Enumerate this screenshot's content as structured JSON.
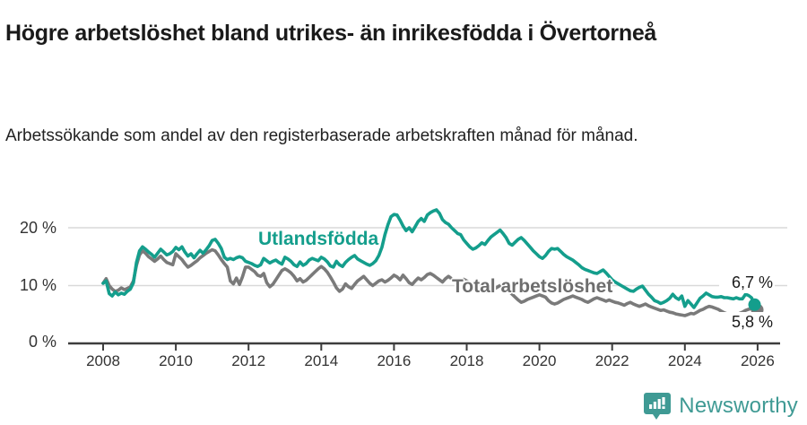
{
  "header": {
    "title": "Högre arbetslöshet bland utrikes- än inrikesfödda i Övertorneå",
    "subtitle": "Arbetssökande som andel av den registerbaserade arbetskraften månad för månad."
  },
  "footer": {
    "brand": "Newsworthy",
    "logo_icon": "bar-chart-speech-bubble-icon"
  },
  "colors": {
    "series_utlandsfodda": "#149e8c",
    "series_total": "#7a7a7a",
    "grid": "#d9d9d9",
    "axis": "#3d3d3d",
    "brand_teal": "#3f9a94",
    "title_text": "#1a1a1a"
  },
  "chart_data": {
    "type": "line",
    "unit": "%",
    "frequency": "monthly",
    "x_start": "2008-01",
    "x_end": "2025-12",
    "x_tick_labels": [
      "2008",
      "2010",
      "2012",
      "2014",
      "2016",
      "2018",
      "2020",
      "2022",
      "2024",
      "2026"
    ],
    "x_tick_years": [
      2008,
      2010,
      2012,
      2014,
      2016,
      2018,
      2020,
      2022,
      2024,
      2026
    ],
    "y_ticks": [
      {
        "value": 0,
        "label": "0 %"
      },
      {
        "value": 10,
        "label": "10 %"
      },
      {
        "value": 20,
        "label": "20 %"
      }
    ],
    "ylim": [
      0,
      25
    ],
    "grid": "horizontal-only",
    "series": [
      {
        "name": "Utlandsfödda",
        "color": "#149e8c",
        "end_value": 6.7,
        "end_label": "6,7 %",
        "values": [
          10.4,
          10.8,
          8.6,
          8.2,
          8.9,
          8.4,
          8.7,
          8.5,
          9.0,
          9.4,
          10.5,
          14.0,
          16.0,
          16.7,
          16.3,
          15.8,
          15.4,
          14.9,
          15.6,
          16.3,
          15.8,
          15.3,
          15.5,
          15.9,
          16.6,
          16.2,
          16.7,
          15.8,
          15.1,
          15.5,
          14.8,
          15.5,
          16.1,
          15.6,
          16.2,
          16.9,
          17.8,
          18.0,
          17.3,
          16.4,
          14.9,
          14.5,
          14.7,
          14.5,
          14.8,
          15.0,
          14.8,
          14.2,
          14.0,
          13.8,
          13.5,
          13.3,
          13.6,
          14.7,
          14.3,
          13.9,
          14.2,
          14.4,
          14.0,
          13.7,
          14.9,
          14.6,
          14.2,
          13.6,
          13.3,
          14.1,
          13.5,
          13.8,
          14.4,
          14.7,
          14.5,
          14.3,
          14.9,
          14.6,
          14.1,
          13.4,
          13.2,
          14.2,
          13.6,
          13.3,
          14.0,
          14.5,
          14.9,
          15.2,
          14.6,
          14.3,
          14.0,
          13.7,
          13.5,
          13.8,
          14.3,
          15.2,
          16.6,
          18.8,
          20.5,
          21.9,
          22.3,
          22.2,
          21.3,
          20.3,
          19.5,
          20.0,
          19.3,
          20.2,
          21.1,
          21.6,
          21.1,
          22.2,
          22.6,
          22.9,
          23.1,
          22.5,
          21.4,
          20.9,
          20.6,
          20.0,
          19.5,
          19.0,
          18.8,
          17.9,
          17.3,
          16.7,
          16.3,
          16.5,
          16.9,
          17.4,
          17.1,
          17.8,
          18.4,
          18.8,
          19.2,
          19.6,
          19.0,
          18.3,
          17.3,
          17.0,
          17.5,
          18.0,
          18.3,
          17.8,
          17.2,
          16.6,
          16.0,
          15.5,
          15.0,
          14.7,
          15.2,
          15.9,
          16.4,
          16.3,
          16.4,
          15.9,
          15.4,
          15.0,
          14.7,
          14.4,
          14.0,
          13.6,
          13.1,
          12.8,
          12.6,
          12.4,
          12.2,
          12.1,
          12.4,
          12.7,
          12.2,
          11.6,
          11.0,
          10.6,
          10.3,
          10.0,
          9.7,
          9.4,
          9.1,
          9.0,
          9.4,
          9.7,
          9.9,
          9.2,
          8.5,
          8.0,
          7.4,
          7.2,
          6.9,
          7.1,
          7.4,
          7.8,
          8.5,
          7.9,
          7.6,
          8.2,
          6.4,
          7.4,
          6.8,
          6.2,
          7.0,
          7.8,
          8.2,
          8.7,
          8.4,
          8.1,
          8.0,
          8.0,
          8.1,
          7.9,
          7.9,
          7.8,
          7.7,
          7.9,
          7.7,
          7.7,
          8.5,
          8.3,
          7.9,
          6.7
        ]
      },
      {
        "name": "Total arbetslöshet",
        "color": "#7a7a7a",
        "end_value": 5.8,
        "end_label": "5,8 %",
        "values": [
          10.4,
          11.2,
          10.0,
          9.4,
          9.0,
          9.2,
          9.6,
          9.3,
          9.5,
          9.8,
          10.8,
          13.5,
          15.3,
          16.0,
          15.6,
          15.0,
          14.6,
          14.2,
          14.6,
          15.1,
          14.5,
          14.0,
          13.8,
          13.6,
          15.5,
          15.0,
          14.5,
          13.8,
          13.2,
          13.5,
          13.9,
          14.3,
          14.8,
          15.2,
          15.6,
          15.9,
          16.2,
          16.0,
          15.3,
          14.5,
          13.8,
          13.2,
          10.8,
          10.3,
          11.3,
          10.2,
          11.5,
          13.2,
          13.2,
          12.8,
          12.4,
          11.8,
          11.6,
          12.1,
          10.5,
          9.8,
          10.2,
          11.0,
          11.8,
          12.6,
          12.9,
          12.6,
          12.2,
          11.6,
          10.8,
          11.2,
          10.6,
          10.9,
          11.4,
          11.9,
          12.4,
          12.9,
          13.3,
          12.9,
          12.3,
          11.5,
          10.6,
          9.6,
          9.0,
          9.4,
          10.3,
          9.8,
          9.5,
          10.2,
          10.8,
          11.2,
          11.6,
          11.0,
          10.4,
          10.0,
          10.4,
          10.8,
          11.0,
          10.6,
          10.9,
          11.3,
          11.8,
          11.5,
          11.0,
          11.8,
          11.2,
          10.5,
          10.2,
          10.8,
          11.3,
          11.0,
          11.4,
          11.9,
          12.1,
          11.8,
          11.4,
          11.0,
          10.6,
          11.2,
          11.6,
          11.2,
          10.8,
          10.5,
          10.8,
          11.1,
          10.8,
          10.5,
          10.1,
          9.7,
          9.3,
          9.6,
          9.2,
          8.9,
          9.1,
          9.4,
          9.7,
          10.0,
          9.8,
          9.4,
          9.0,
          8.5,
          8.0,
          7.5,
          7.1,
          7.3,
          7.6,
          7.8,
          8.0,
          8.2,
          8.4,
          8.2,
          8.0,
          7.4,
          7.0,
          6.8,
          7.0,
          7.3,
          7.6,
          7.8,
          8.0,
          8.2,
          8.0,
          7.8,
          7.6,
          7.3,
          7.1,
          7.4,
          7.7,
          7.9,
          7.7,
          7.5,
          7.3,
          7.5,
          7.3,
          7.1,
          7.0,
          6.8,
          6.6,
          6.9,
          7.1,
          6.8,
          6.6,
          6.4,
          6.6,
          6.8,
          6.5,
          6.3,
          6.1,
          5.9,
          5.7,
          5.8,
          5.6,
          5.4,
          5.3,
          5.1,
          5.0,
          4.9,
          4.8,
          5.0,
          5.2,
          5.1,
          5.4,
          5.7,
          5.9,
          6.2,
          6.4,
          6.3,
          6.1,
          5.9,
          5.6,
          5.3,
          5.1,
          4.9,
          4.8,
          5.0,
          5.2,
          5.4,
          5.7,
          5.9,
          6.0,
          5.8
        ]
      }
    ]
  }
}
